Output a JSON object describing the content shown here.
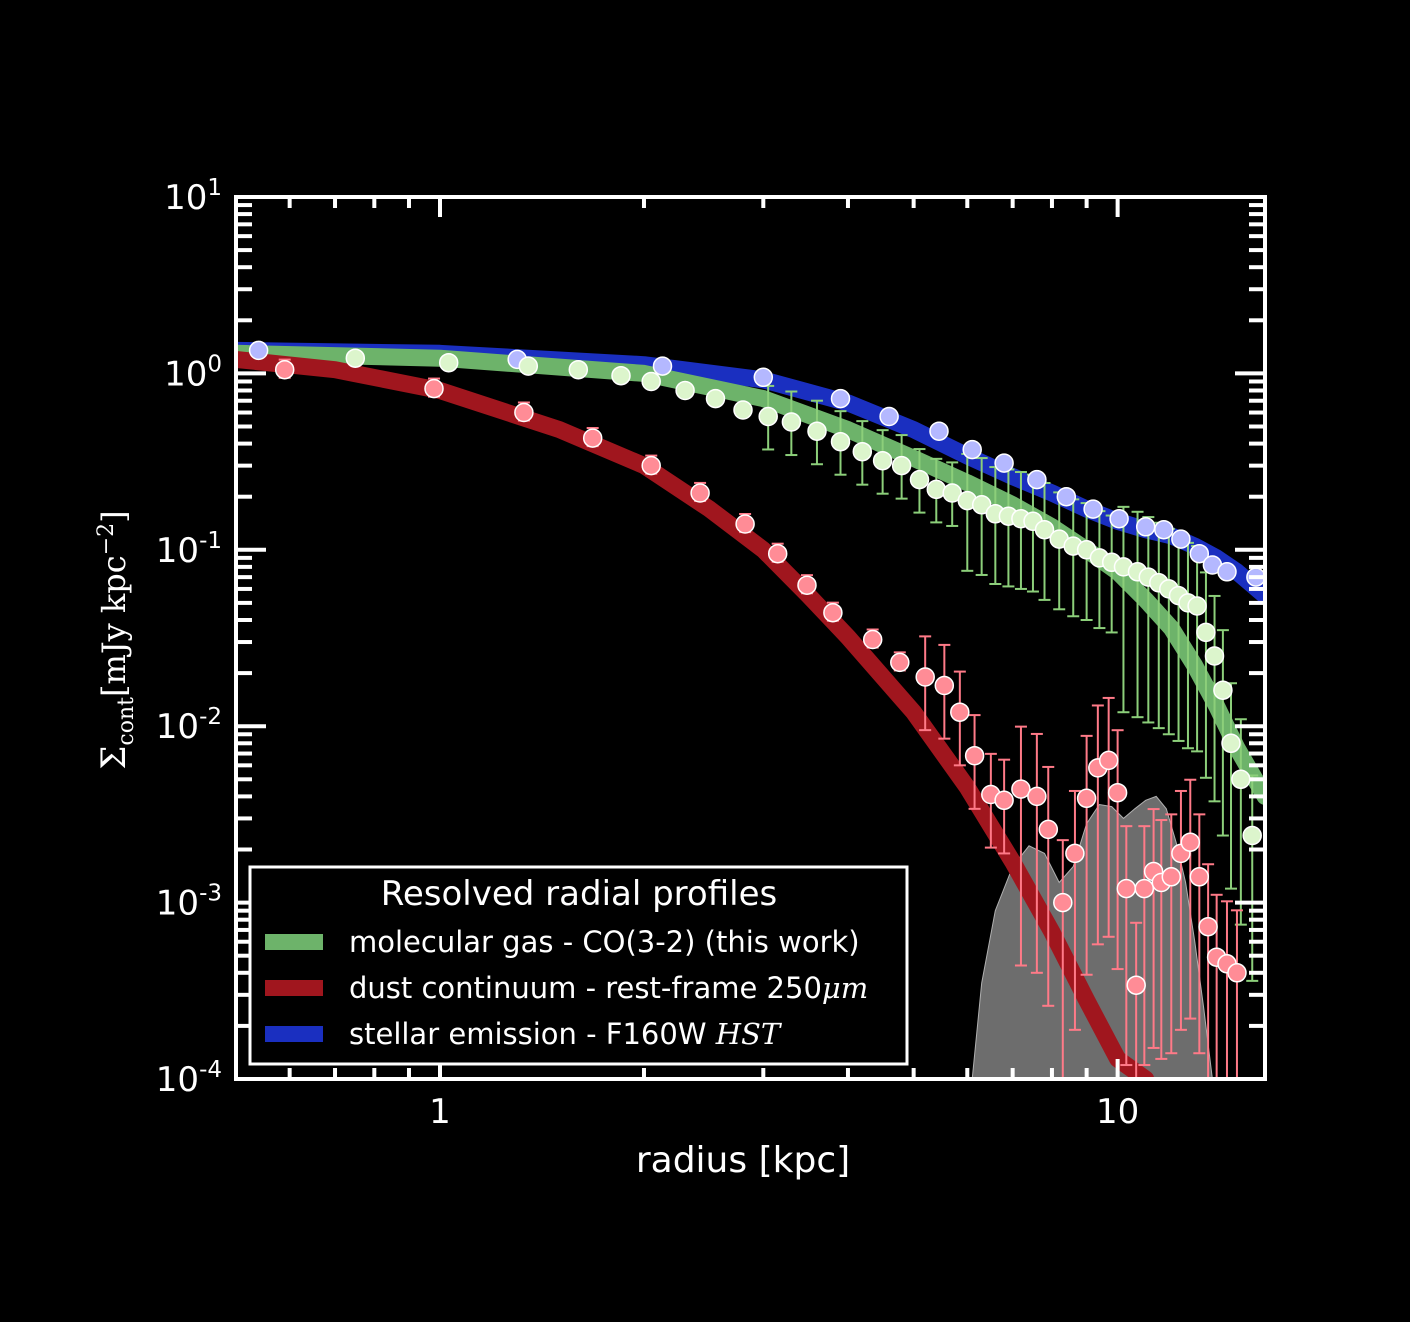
{
  "chart_data": {
    "type": "line",
    "xlabel": "radius [kpc]",
    "ylabel": "Σcont [mJy kpc−2]",
    "xscale": "log",
    "yscale": "log",
    "xlim": [
      0.5,
      16.5
    ],
    "ylim": [
      0.0001,
      10
    ],
    "xticks": [
      {
        "v": 1,
        "label": "1"
      },
      {
        "v": 10,
        "label": "10"
      }
    ],
    "yticks": [
      {
        "v": 10,
        "base": "10",
        "exp": "1"
      },
      {
        "v": 1,
        "base": "10",
        "exp": "0"
      },
      {
        "v": 0.1,
        "base": "10",
        "exp": "-1"
      },
      {
        "v": 0.01,
        "base": "10",
        "exp": "-2"
      },
      {
        "v": 0.001,
        "base": "10",
        "exp": "-3"
      },
      {
        "v": 0.0001,
        "base": "10",
        "exp": "-4"
      }
    ],
    "legend": {
      "title": "Resolved radial profiles",
      "position": "lower-left",
      "entries": [
        {
          "label": "molecular gas - CO(3-2) (this work)",
          "color": "#6db36a"
        },
        {
          "label": "dust continuum - rest-frame 250",
          "label_math": "μm",
          "color": "#a0161e"
        },
        {
          "label": "stellar emission - F160W ",
          "label_math": "HST",
          "color": "#1a2fc0"
        }
      ]
    },
    "series": [
      {
        "key": "stellar",
        "color": "#1a2fc0",
        "point_color": "#b4b8ff",
        "model": {
          "x": [
            0.5,
            1,
            2,
            3,
            4,
            5,
            6,
            7,
            8,
            9,
            10,
            11,
            12,
            13,
            14,
            15,
            16.5
          ],
          "y": [
            1.35,
            1.3,
            1.12,
            0.92,
            0.68,
            0.48,
            0.34,
            0.26,
            0.21,
            0.17,
            0.145,
            0.13,
            0.12,
            0.105,
            0.09,
            0.075,
            0.055
          ]
        },
        "x": [
          0.54,
          1.3,
          2.13,
          3.0,
          3.9,
          4.6,
          5.45,
          6.1,
          6.8,
          7.6,
          8.4,
          9.2,
          10.05,
          11.0,
          11.7,
          12.4,
          13.2,
          13.8,
          14.5,
          16.0
        ],
        "y": [
          1.35,
          1.2,
          1.1,
          0.95,
          0.72,
          0.57,
          0.47,
          0.37,
          0.31,
          0.25,
          0.2,
          0.17,
          0.15,
          0.135,
          0.13,
          0.115,
          0.095,
          0.082,
          0.075,
          0.07
        ]
      },
      {
        "key": "gas",
        "color": "#6db36a",
        "point_color": "#dcf5cc",
        "model": {
          "x": [
            0.5,
            1,
            2,
            3,
            4,
            5,
            6,
            7,
            8,
            9,
            10,
            11,
            12,
            13,
            14,
            15,
            16.5
          ],
          "y": [
            1.3,
            1.22,
            1.0,
            0.72,
            0.48,
            0.33,
            0.24,
            0.18,
            0.135,
            0.1,
            0.075,
            0.052,
            0.036,
            0.022,
            0.013,
            0.0075,
            0.004
          ]
        },
        "x": [
          0.75,
          1.03,
          1.35,
          1.6,
          1.85,
          2.05,
          2.3,
          2.55,
          2.8,
          3.05,
          3.3,
          3.6,
          3.9,
          4.2,
          4.5,
          4.8,
          5.1,
          5.4,
          5.7,
          6.0,
          6.3,
          6.6,
          6.9,
          7.2,
          7.5,
          7.8,
          8.2,
          8.6,
          9.0,
          9.4,
          9.8,
          10.2,
          10.7,
          11.1,
          11.5,
          11.9,
          12.3,
          12.7,
          13.1,
          13.5,
          13.9,
          14.3,
          14.7,
          15.2,
          15.8
        ],
        "y": [
          1.22,
          1.15,
          1.1,
          1.05,
          0.97,
          0.9,
          0.8,
          0.72,
          0.62,
          0.57,
          0.53,
          0.47,
          0.41,
          0.36,
          0.32,
          0.3,
          0.25,
          0.22,
          0.21,
          0.19,
          0.18,
          0.16,
          0.155,
          0.15,
          0.145,
          0.13,
          0.115,
          0.105,
          0.1,
          0.09,
          0.085,
          0.08,
          0.075,
          0.07,
          0.065,
          0.06,
          0.055,
          0.05,
          0.048,
          0.034,
          0.025,
          0.016,
          0.008,
          0.005,
          0.0024
        ]
      },
      {
        "key": "dust",
        "color": "#a0161e",
        "point_color": "#ff8c96",
        "model": {
          "x": [
            0.5,
            0.7,
            1.0,
            1.5,
            2.0,
            2.5,
            3.0,
            3.5,
            4.0,
            5.0,
            6.0,
            7.0,
            8.0,
            9.0,
            10.0,
            11.0
          ],
          "y": [
            1.2,
            1.05,
            0.8,
            0.48,
            0.3,
            0.17,
            0.1,
            0.055,
            0.032,
            0.012,
            0.0045,
            0.0017,
            0.00068,
            0.00028,
            0.00013,
            0.0001
          ]
        },
        "x": [
          0.59,
          0.98,
          1.33,
          1.68,
          2.05,
          2.42,
          2.82,
          3.15,
          3.48,
          3.8,
          4.35,
          4.77,
          5.2,
          5.55,
          5.85,
          6.15,
          6.5,
          6.8,
          7.2,
          7.6,
          7.9,
          8.3,
          8.65,
          9.0,
          9.35,
          9.7,
          10.0,
          10.3,
          10.65,
          10.95,
          11.3,
          11.6,
          12.0,
          12.4,
          12.8,
          13.2,
          13.6,
          14.0,
          14.5,
          15.0
        ],
        "y": [
          1.05,
          0.82,
          0.6,
          0.43,
          0.3,
          0.21,
          0.14,
          0.095,
          0.063,
          0.044,
          0.031,
          0.023,
          0.019,
          0.017,
          0.012,
          0.0068,
          0.0041,
          0.0038,
          0.0044,
          0.004,
          0.0026,
          0.001,
          0.0019,
          0.0039,
          0.0058,
          0.0064,
          0.0042,
          0.0012,
          0.00034,
          0.0012,
          0.0015,
          0.0013,
          0.0014,
          0.0019,
          0.0022,
          0.0014,
          0.00073,
          0.00049,
          0.00045,
          0.0004
        ]
      }
    ],
    "shaded": {
      "color": "#808080",
      "x": [
        6.1,
        6.3,
        6.6,
        7.0,
        7.4,
        7.8,
        8.2,
        8.6,
        9.0,
        9.4,
        9.8,
        10.2,
        10.6,
        11.0,
        11.4,
        11.8,
        12.2,
        12.6,
        13.0,
        13.4,
        13.8
      ],
      "y": [
        0.0001,
        0.00035,
        0.0009,
        0.0016,
        0.0021,
        0.0019,
        0.0013,
        0.0016,
        0.0028,
        0.0036,
        0.0035,
        0.003,
        0.0034,
        0.0038,
        0.004,
        0.0034,
        0.0022,
        0.0013,
        0.0006,
        0.00025,
        0.0001
      ]
    }
  }
}
